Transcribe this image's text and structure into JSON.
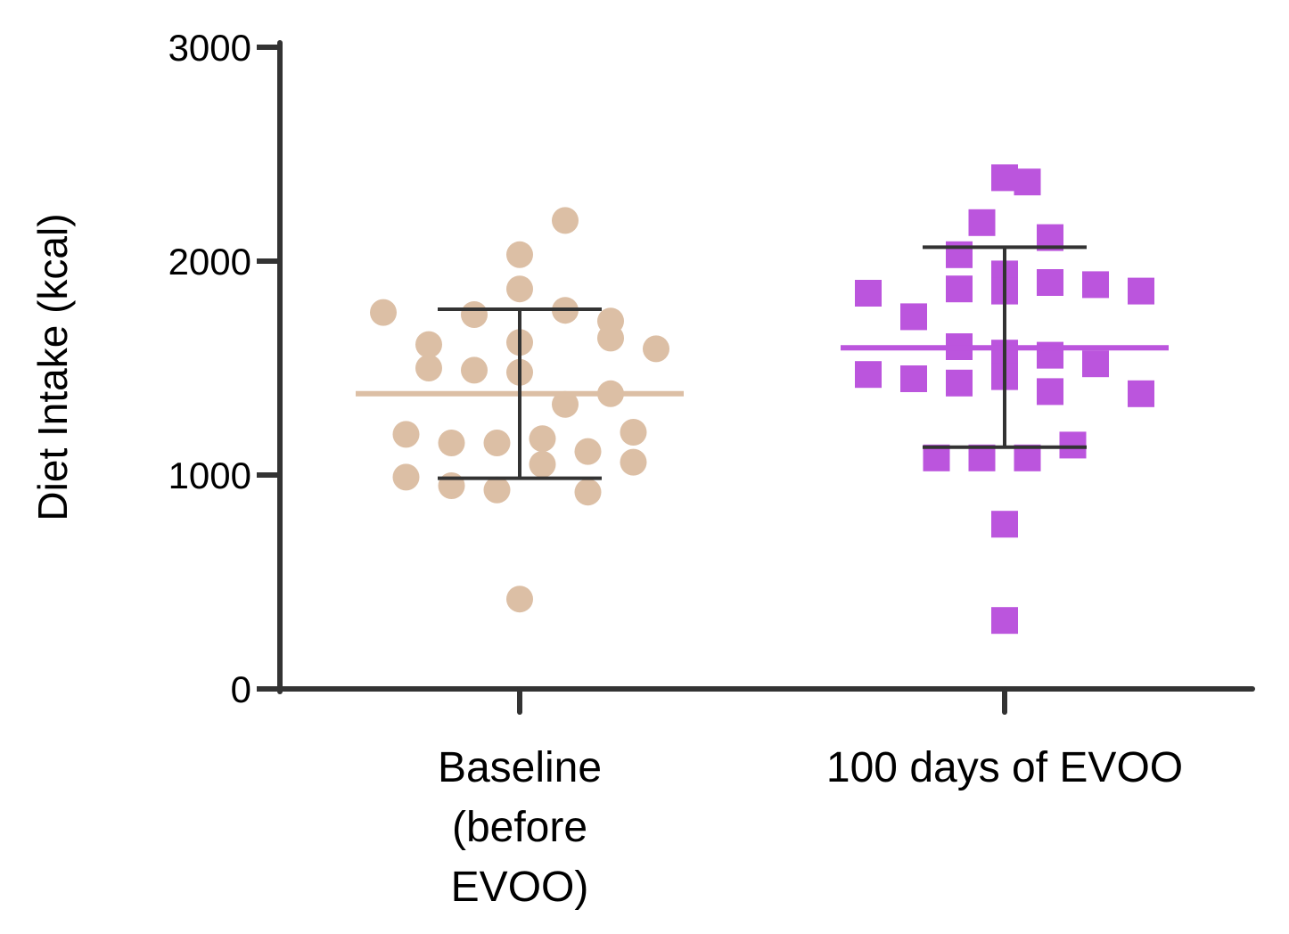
{
  "chart_data": {
    "type": "scatter",
    "ylabel": "Diet Intake (kcal)",
    "ylim": [
      0,
      3000
    ],
    "yticks": [
      0,
      1000,
      2000,
      3000
    ],
    "ytick_labels": [
      "0",
      "1000",
      "2000",
      "3000"
    ],
    "categories": [
      {
        "lines": [
          "Baseline",
          "(before",
          "EVOO)"
        ]
      },
      {
        "lines": [
          "100 days of EVOO"
        ]
      }
    ],
    "colors": {
      "axis": "#333333",
      "errorbar": "#333333"
    },
    "series": [
      {
        "name": "Baseline (before EVOO)",
        "marker": "circle",
        "color": "#dcbfa5",
        "mean": 1380,
        "error_low": 985,
        "error_high": 1775,
        "points": [
          {
            "slot": -3,
            "y": 1760
          },
          {
            "slot": -2,
            "y": 1610
          },
          {
            "slot": -2,
            "y": 1500
          },
          {
            "slot": -1,
            "y": 1750
          },
          {
            "slot": -1,
            "y": 1490
          },
          {
            "slot": 0,
            "y": 1870
          },
          {
            "slot": 0,
            "y": 2030
          },
          {
            "slot": 0,
            "y": 1620
          },
          {
            "slot": 0,
            "y": 1480
          },
          {
            "slot": 1,
            "y": 2190
          },
          {
            "slot": 1,
            "y": 1770
          },
          {
            "slot": 2,
            "y": 1720
          },
          {
            "slot": 1,
            "y": 1330
          },
          {
            "slot": 2,
            "y": 1640
          },
          {
            "slot": 2,
            "y": 1380
          },
          {
            "slot": 3,
            "y": 1590
          },
          {
            "slot": -2.5,
            "y": 1190
          },
          {
            "slot": -1.5,
            "y": 1150
          },
          {
            "slot": -0.5,
            "y": 1150
          },
          {
            "slot": 0.5,
            "y": 1170
          },
          {
            "slot": 1.5,
            "y": 1110
          },
          {
            "slot": 2.5,
            "y": 1200
          },
          {
            "slot": -2.5,
            "y": 990
          },
          {
            "slot": -1.5,
            "y": 950
          },
          {
            "slot": -0.5,
            "y": 930
          },
          {
            "slot": 0.5,
            "y": 1050
          },
          {
            "slot": 1.5,
            "y": 920
          },
          {
            "slot": 2.5,
            "y": 1060
          },
          {
            "slot": 0,
            "y": 420
          }
        ]
      },
      {
        "name": "100 days of EVOO",
        "marker": "square",
        "color": "#bb55dd",
        "mean": 1595,
        "error_low": 1130,
        "error_high": 2065,
        "points": [
          {
            "slot": 0,
            "y": 2390
          },
          {
            "slot": 0.5,
            "y": 2370
          },
          {
            "slot": -0.5,
            "y": 2180
          },
          {
            "slot": 1,
            "y": 2110
          },
          {
            "slot": -1,
            "y": 2030
          },
          {
            "slot": 0,
            "y": 1940
          },
          {
            "slot": -3,
            "y": 1850
          },
          {
            "slot": -1,
            "y": 1870
          },
          {
            "slot": 0,
            "y": 1860
          },
          {
            "slot": 1,
            "y": 1900
          },
          {
            "slot": 2,
            "y": 1890
          },
          {
            "slot": 3,
            "y": 1860
          },
          {
            "slot": -2,
            "y": 1740
          },
          {
            "slot": -1,
            "y": 1600
          },
          {
            "slot": 0,
            "y": 1570
          },
          {
            "slot": 1,
            "y": 1560
          },
          {
            "slot": 2,
            "y": 1520
          },
          {
            "slot": -3,
            "y": 1470
          },
          {
            "slot": -2,
            "y": 1450
          },
          {
            "slot": -1,
            "y": 1430
          },
          {
            "slot": 0,
            "y": 1460
          },
          {
            "slot": 1,
            "y": 1390
          },
          {
            "slot": 3,
            "y": 1380
          },
          {
            "slot": 1.5,
            "y": 1140
          },
          {
            "slot": -1.5,
            "y": 1080
          },
          {
            "slot": -0.5,
            "y": 1080
          },
          {
            "slot": 0.5,
            "y": 1080
          },
          {
            "slot": 0,
            "y": 770
          },
          {
            "slot": 0,
            "y": 320
          }
        ]
      }
    ]
  }
}
